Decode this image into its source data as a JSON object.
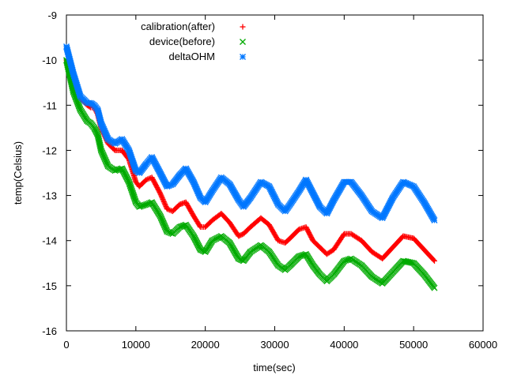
{
  "chart_data": {
    "type": "scatter",
    "title": "",
    "xlabel": "time(sec)",
    "ylabel": "temp(Celsius)",
    "xlim": [
      0,
      60000
    ],
    "ylim": [
      -16,
      -9
    ],
    "xticks": [
      0,
      10000,
      20000,
      30000,
      40000,
      50000,
      60000
    ],
    "yticks": [
      -16,
      -15,
      -14,
      -13,
      -12,
      -11,
      -10,
      -9
    ],
    "xtick_labels": [
      "0",
      "10000",
      "20000",
      "30000",
      "40000",
      "50000",
      "60000"
    ],
    "ytick_labels": [
      "-16",
      "-15",
      "-14",
      "-13",
      "-12",
      "-11",
      "-10",
      "-9"
    ],
    "grid": false,
    "legend_position": "top-center",
    "series": [
      {
        "name": "calibration(after)",
        "marker": "+",
        "color": "#ff0000",
        "x": [
          0,
          1000,
          2000,
          3000,
          3500,
          4000,
          4500,
          5000,
          6000,
          7000,
          8000,
          9000,
          10000,
          10500,
          11500,
          12300,
          13500,
          14500,
          15300,
          16300,
          17200,
          18300,
          19300,
          20000,
          21000,
          22300,
          23500,
          24800,
          25500,
          26500,
          28000,
          29200,
          30500,
          31500,
          32200,
          33500,
          34500,
          35500,
          36500,
          37500,
          38500,
          40000,
          41000,
          42500,
          44000,
          45500,
          47000,
          48500,
          50000,
          51500,
          53000
        ],
        "y": [
          -10.0,
          -10.5,
          -10.85,
          -11.0,
          -11.05,
          -11.05,
          -11.2,
          -11.5,
          -11.85,
          -12.0,
          -12.0,
          -12.2,
          -12.7,
          -12.8,
          -12.65,
          -12.6,
          -12.95,
          -13.3,
          -13.35,
          -13.2,
          -13.15,
          -13.45,
          -13.7,
          -13.7,
          -13.55,
          -13.4,
          -13.6,
          -13.9,
          -13.85,
          -13.7,
          -13.5,
          -13.65,
          -14.0,
          -14.05,
          -13.95,
          -13.75,
          -13.7,
          -14.0,
          -14.15,
          -14.3,
          -14.2,
          -13.85,
          -13.85,
          -14.0,
          -14.25,
          -14.4,
          -14.15,
          -13.9,
          -13.95,
          -14.2,
          -14.45
        ]
      },
      {
        "name": "device(before)",
        "marker": "x",
        "color": "#00aa00",
        "x": [
          0,
          1000,
          2000,
          3000,
          3500,
          4000,
          4500,
          5000,
          6000,
          7000,
          8000,
          9000,
          10000,
          10500,
          11500,
          12300,
          13500,
          14500,
          15300,
          16300,
          17200,
          18300,
          19300,
          20000,
          21000,
          22300,
          23500,
          24800,
          25500,
          26500,
          28000,
          29200,
          30500,
          31500,
          32200,
          33500,
          34500,
          35500,
          36500,
          37500,
          38500,
          40000,
          41000,
          42500,
          44000,
          45500,
          47000,
          48500,
          50000,
          51500,
          53000
        ],
        "y": [
          -10.0,
          -10.7,
          -11.1,
          -11.35,
          -11.4,
          -11.5,
          -11.65,
          -12.0,
          -12.35,
          -12.45,
          -12.4,
          -12.7,
          -13.15,
          -13.25,
          -13.2,
          -13.15,
          -13.45,
          -13.8,
          -13.85,
          -13.7,
          -13.65,
          -13.9,
          -14.2,
          -14.25,
          -14.0,
          -13.9,
          -14.05,
          -14.4,
          -14.45,
          -14.25,
          -14.1,
          -14.25,
          -14.55,
          -14.65,
          -14.55,
          -14.35,
          -14.3,
          -14.55,
          -14.75,
          -14.9,
          -14.75,
          -14.45,
          -14.4,
          -14.55,
          -14.8,
          -14.95,
          -14.7,
          -14.45,
          -14.5,
          -14.75,
          -15.05
        ]
      },
      {
        "name": "deltaOHM",
        "marker": "*",
        "color": "#0077ff",
        "x": [
          0,
          1000,
          2000,
          3000,
          3500,
          4000,
          4500,
          5000,
          6000,
          7000,
          8000,
          9000,
          10000,
          10500,
          11500,
          12300,
          13500,
          14500,
          15300,
          16300,
          17200,
          18300,
          19300,
          20000,
          21000,
          22300,
          23500,
          24800,
          25500,
          26500,
          28000,
          29200,
          30500,
          31500,
          32200,
          33500,
          34500,
          35500,
          36500,
          37500,
          38500,
          40000,
          41000,
          42500,
          44000,
          45500,
          47000,
          48500,
          50000,
          51500,
          53000
        ],
        "y": [
          -9.7,
          -10.3,
          -10.8,
          -10.95,
          -10.95,
          -11.0,
          -11.1,
          -11.4,
          -11.75,
          -11.85,
          -11.75,
          -12.0,
          -12.45,
          -12.5,
          -12.3,
          -12.15,
          -12.5,
          -12.8,
          -12.75,
          -12.55,
          -12.4,
          -12.7,
          -13.05,
          -13.15,
          -12.9,
          -12.6,
          -12.75,
          -13.1,
          -13.25,
          -13.05,
          -12.7,
          -12.8,
          -13.2,
          -13.35,
          -13.2,
          -12.9,
          -12.65,
          -12.95,
          -13.25,
          -13.4,
          -13.1,
          -12.7,
          -12.7,
          -13.0,
          -13.35,
          -13.5,
          -13.05,
          -12.7,
          -12.8,
          -13.15,
          -13.55
        ]
      }
    ]
  }
}
